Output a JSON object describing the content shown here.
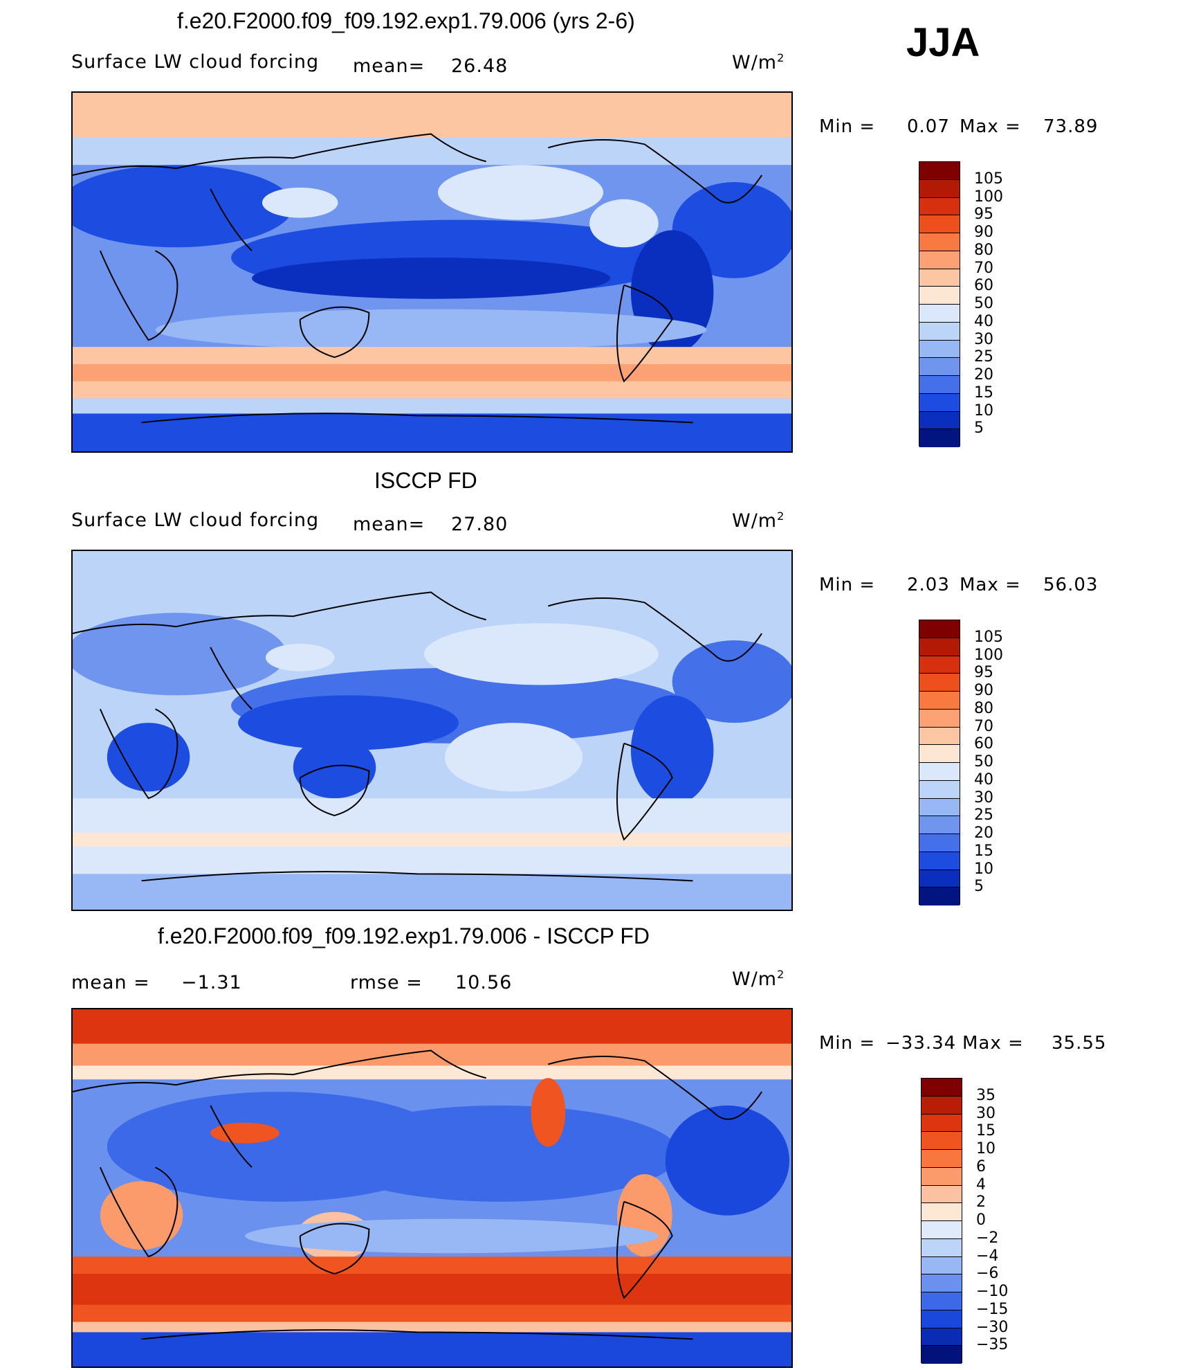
{
  "season": "JJA",
  "units_label": "W/m",
  "units_exp": "2",
  "panels": [
    {
      "title": "f.e20.F2000.f09_f09.192.exp1.79.006 (yrs 2-6)",
      "variable": "Surface LW cloud forcing",
      "stat_label": "mean=",
      "stat_value": "26.48",
      "min_label": "Min =",
      "min_value": "0.07",
      "max_label": "Max =",
      "max_value": "73.89",
      "map_type": "model",
      "colorbar": {
        "labels": [
          "105",
          "100",
          "95",
          "90",
          "80",
          "70",
          "60",
          "50",
          "40",
          "30",
          "25",
          "20",
          "15",
          "10",
          "5"
        ],
        "colors": [
          "#7f0000",
          "#b21a05",
          "#d7300f",
          "#ef4f1d",
          "#f87a40",
          "#fba173",
          "#fcc6a2",
          "#fde6d4",
          "#dbe8fb",
          "#bcd4f8",
          "#97b8f4",
          "#6f95ef",
          "#4470ea",
          "#1c4de0",
          "#0a2ebd",
          "#02147f"
        ]
      }
    },
    {
      "title": "ISCCP FD",
      "variable": "Surface LW cloud forcing",
      "stat_label": "mean=",
      "stat_value": "27.80",
      "min_label": "Min =",
      "min_value": "2.03",
      "max_label": "Max =",
      "max_value": "56.03",
      "map_type": "obs",
      "colorbar": {
        "labels": [
          "105",
          "100",
          "95",
          "90",
          "80",
          "70",
          "60",
          "50",
          "40",
          "30",
          "25",
          "20",
          "15",
          "10",
          "5"
        ],
        "colors": [
          "#7f0000",
          "#b21a05",
          "#d7300f",
          "#ef4f1d",
          "#f87a40",
          "#fba173",
          "#fcc6a2",
          "#fde6d4",
          "#dbe8fb",
          "#bcd4f8",
          "#97b8f4",
          "#6f95ef",
          "#4470ea",
          "#1c4de0",
          "#0a2ebd",
          "#02147f"
        ]
      }
    },
    {
      "title": "f.e20.F2000.f09_f09.192.exp1.79.006 - ISCCP FD",
      "mean_label": "mean =",
      "mean_value": "−1.31",
      "rmse_label": "rmse =",
      "rmse_value": "10.56",
      "min_label": "Min =",
      "min_value": "−33.34",
      "max_label": "Max =",
      "max_value": "35.55",
      "map_type": "diff",
      "colorbar": {
        "labels": [
          "35",
          "30",
          "15",
          "10",
          "6",
          "4",
          "2",
          "0",
          "−2",
          "−4",
          "−6",
          "−10",
          "−15",
          "−30",
          "−35"
        ],
        "colors": [
          "#7f0000",
          "#b81d05",
          "#dc3510",
          "#ef5421",
          "#f8773f",
          "#fb9a6b",
          "#fcc1a0",
          "#fde8d6",
          "#dfeafb",
          "#bcd4f8",
          "#97b8f4",
          "#6a91ee",
          "#3c69e8",
          "#1a48dc",
          "#0a2bb4",
          "#02127b"
        ]
      }
    }
  ]
}
